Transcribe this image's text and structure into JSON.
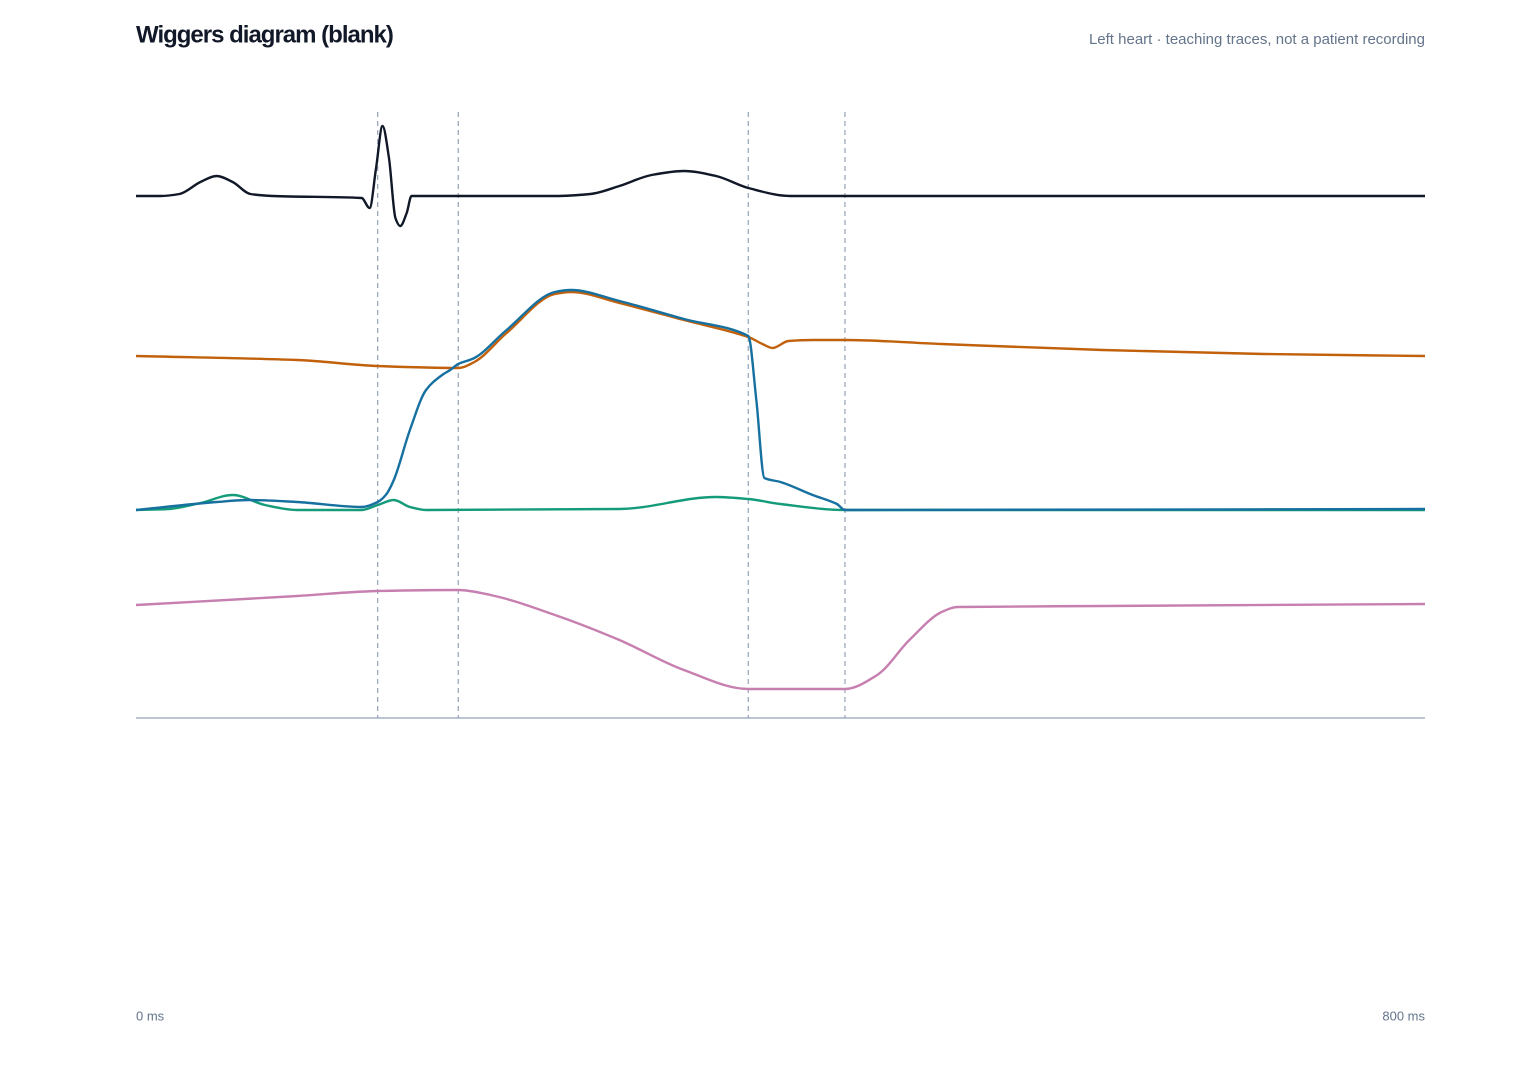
{
  "chart_data": {
    "type": "line",
    "title": "Wiggers diagram (blank)",
    "subtitle": "Left heart · teaching traces, not a patient recording",
    "xlim": [
      0,
      800
    ],
    "xticks": [
      {
        "value": 0,
        "label": "0 ms"
      },
      {
        "value": 800,
        "label": "800 ms"
      }
    ],
    "ylim": [
      0,
      608
    ],
    "markers": [
      150,
      200,
      380,
      440
    ],
    "series": [
      {
        "color": "#111827",
        "x": [
          0,
          15,
          27,
          40,
          50,
          60,
          71,
          85,
          140,
          145,
          149,
          153,
          157,
          161,
          164,
          168,
          171,
          180,
          260,
          282,
          300,
          320,
          340,
          360,
          380,
          406,
          440,
          800
        ],
        "values": [
          522,
          522,
          524,
          536,
          542,
          536,
          524,
          522,
          520,
          510,
          550,
          592,
          560,
          500,
          492,
          505,
          522,
          522,
          522,
          524,
          532,
          543,
          547,
          542,
          530,
          522,
          522,
          522
        ]
      },
      {
        "color": "#c77fb0",
        "x": [
          0,
          100,
          150,
          200,
          220,
          260,
          300,
          340,
          380,
          440,
          460,
          480,
          500,
          510,
          600,
          800
        ],
        "values": [
          113,
          122,
          127,
          128,
          123,
          103,
          78,
          48,
          29,
          29,
          43,
          78,
          106,
          111,
          112,
          114
        ]
      },
      {
        "color": "#149b79",
        "x": [
          0,
          20,
          40,
          60,
          80,
          100,
          140,
          150,
          160,
          170,
          180,
          300,
          360,
          380,
          400,
          440,
          800
        ],
        "values": [
          208,
          209,
          215,
          223,
          213,
          208,
          208,
          213,
          218,
          211,
          208,
          209,
          221,
          219,
          214,
          208,
          208
        ]
      },
      {
        "color": "#c2610c",
        "x": [
          0,
          100,
          150,
          200,
          210,
          230,
          260,
          270,
          300,
          340,
          380,
          390,
          395,
          405,
          420,
          440,
          500,
          600,
          700,
          800
        ],
        "values": [
          362,
          358,
          352,
          350,
          356,
          385,
          424,
          426,
          415,
          398,
          381,
          373,
          370,
          377,
          378,
          378,
          374,
          368,
          364,
          362
        ]
      },
      {
        "color": "#1670a0",
        "x": [
          0,
          50,
          70,
          100,
          140,
          150,
          155,
          160,
          170,
          180,
          190,
          195,
          200,
          210,
          230,
          260,
          270,
          300,
          340,
          380,
          385,
          390,
          400,
          420,
          435,
          440,
          800
        ],
        "values": [
          208,
          216,
          218,
          216,
          211,
          216,
          223,
          238,
          288,
          328,
          343,
          348,
          354,
          360,
          388,
          426,
          428,
          417,
          399,
          382,
          318,
          240,
          236,
          223,
          214,
          208,
          209
        ]
      }
    ]
  }
}
